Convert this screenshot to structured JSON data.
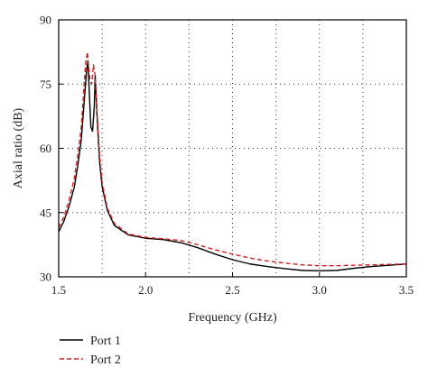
{
  "chart_data": {
    "type": "line",
    "title": "",
    "xlabel": "Frequency (GHz)",
    "ylabel": "Axial ratio (dB)",
    "xlim": [
      1.5,
      3.5
    ],
    "ylim": [
      30,
      90
    ],
    "xticks": [
      "1.5",
      "2.0",
      "2.5",
      "3.0",
      "3.5"
    ],
    "xtick_values": [
      1.5,
      2.0,
      2.5,
      3.0,
      3.5
    ],
    "yticks": [
      "30",
      "45",
      "60",
      "75",
      "90"
    ],
    "ytick_values": [
      30,
      45,
      60,
      75,
      90
    ],
    "grid": true,
    "grid_style": "dotted",
    "legend_position": "below",
    "series": [
      {
        "name": "Port 1",
        "color": "#000000",
        "dash": "solid",
        "x": [
          1.5,
          1.53,
          1.56,
          1.59,
          1.61,
          1.63,
          1.645,
          1.66,
          1.668,
          1.675,
          1.685,
          1.695,
          1.705,
          1.71,
          1.72,
          1.735,
          1.75,
          1.78,
          1.82,
          1.9,
          2.0,
          2.1,
          2.2,
          2.3,
          2.4,
          2.5,
          2.6,
          2.7,
          2.8,
          2.9,
          3.0,
          3.1,
          3.2,
          3.3,
          3.4,
          3.5
        ],
        "y": [
          40.5,
          43.0,
          46.5,
          51.0,
          56.0,
          62.0,
          70.0,
          78.0,
          80.5,
          74.0,
          65.0,
          64.0,
          70.0,
          77.0,
          68.0,
          57.0,
          51.0,
          45.5,
          42.0,
          39.8,
          39.0,
          38.7,
          38.0,
          36.8,
          35.3,
          34.0,
          33.0,
          32.4,
          31.9,
          31.5,
          31.4,
          31.5,
          32.0,
          32.4,
          32.7,
          33.0
        ]
      },
      {
        "name": "Port 2",
        "color": "#cc2222",
        "dash": "dashed",
        "x": [
          1.5,
          1.53,
          1.56,
          1.59,
          1.61,
          1.63,
          1.645,
          1.655,
          1.665,
          1.67,
          1.68,
          1.69,
          1.7,
          1.71,
          1.72,
          1.735,
          1.75,
          1.78,
          1.82,
          1.9,
          2.0,
          2.1,
          2.2,
          2.3,
          2.4,
          2.5,
          2.6,
          2.7,
          2.8,
          2.9,
          3.0,
          3.1,
          3.2,
          3.3,
          3.4,
          3.5
        ],
        "y": [
          41.5,
          44.0,
          48.0,
          53.0,
          58.5,
          65.0,
          74.0,
          80.0,
          82.5,
          80.0,
          76.0,
          75.0,
          79.5,
          77.0,
          69.0,
          58.5,
          52.0,
          46.0,
          42.5,
          40.0,
          39.2,
          38.9,
          38.5,
          37.5,
          36.3,
          35.3,
          34.4,
          33.7,
          33.2,
          32.8,
          32.6,
          32.6,
          32.7,
          32.8,
          32.9,
          33.0
        ]
      }
    ]
  }
}
